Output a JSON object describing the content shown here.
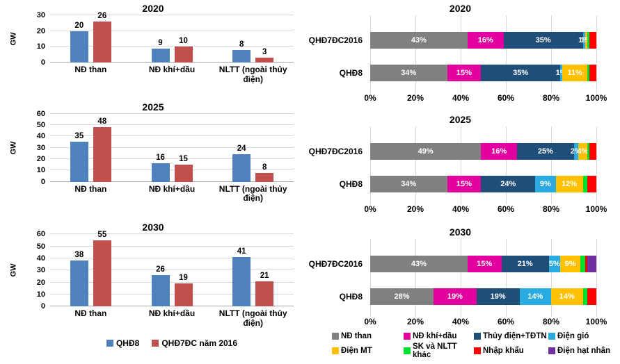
{
  "colors": {
    "qhd8_blue": "#4F81BD",
    "qhd7dc_red": "#C0504D",
    "nd_than_gray": "#808080",
    "nd_khi_dau_magenta": "#E2009E",
    "thuy_dien_navy": "#1F4E79",
    "dien_gio_cyan": "#29ABE2",
    "dien_mt_yellow": "#FFC000",
    "sk_nltt_green": "#00E02C",
    "nhap_khau_red": "#FF0000",
    "dien_hat_nhan_purple": "#7030A0",
    "gridline": "#D9D9D9",
    "axis_line": "#A6A6A6",
    "bar_label_white": "#FFFFFF",
    "text_black": "#000000"
  },
  "left_panel": {
    "legend": [
      {
        "label": "QHĐ8",
        "color": "#4F81BD"
      },
      {
        "label": "QHĐ7ĐC năm 2016",
        "color": "#C0504D"
      }
    ]
  },
  "right_panel": {
    "legend": [
      {
        "label": "NĐ than",
        "color": "#808080"
      },
      {
        "label": "NĐ khí+dầu",
        "color": "#E2009E"
      },
      {
        "label": "Thủy điện+TĐTN",
        "color": "#1F4E79"
      },
      {
        "label": "Điện gió",
        "color": "#29ABE2"
      },
      {
        "label": "Điện MT",
        "color": "#FFC000"
      },
      {
        "label": "SK và NLTT khác",
        "color": "#00E02C"
      },
      {
        "label": "Nhập khẩu",
        "color": "#FF0000"
      },
      {
        "label": "Điện hạt nhân",
        "color": "#7030A0"
      }
    ]
  },
  "chart_data": [
    {
      "type": "bar",
      "title": "2020",
      "ylabel": "GW",
      "ylim": [
        0,
        30
      ],
      "yticks": [
        0,
        10,
        20,
        30
      ],
      "grid": true,
      "categories": [
        "NĐ than",
        "NĐ khí+dầu",
        "NLTT (ngoài thủy điện)"
      ],
      "series": [
        {
          "name": "QHĐ8",
          "color": "#4F81BD",
          "values": [
            20,
            9,
            8
          ]
        },
        {
          "name": "QHĐ7ĐC năm 2016",
          "color": "#C0504D",
          "values": [
            26,
            10,
            3
          ]
        }
      ]
    },
    {
      "type": "bar",
      "title": "2025",
      "ylabel": "GW",
      "ylim": [
        0,
        60
      ],
      "yticks": [
        0,
        10,
        20,
        30,
        40,
        50,
        60
      ],
      "grid": true,
      "categories": [
        "NĐ than",
        "NĐ khí+dầu",
        "NLTT (ngoài thủy điện)"
      ],
      "series": [
        {
          "name": "QHĐ8",
          "color": "#4F81BD",
          "values": [
            35,
            16,
            24
          ]
        },
        {
          "name": "QHĐ7ĐC năm 2016",
          "color": "#C0504D",
          "values": [
            48,
            15,
            8
          ]
        }
      ]
    },
    {
      "type": "bar",
      "title": "2030",
      "ylabel": "GW",
      "ylim": [
        0,
        60
      ],
      "yticks": [
        0,
        10,
        20,
        30,
        40,
        50,
        60
      ],
      "grid": true,
      "categories": [
        "NĐ than",
        "NĐ khí+dầu",
        "NLTT (ngoài thủy điện)"
      ],
      "series": [
        {
          "name": "QHĐ8",
          "color": "#4F81BD",
          "values": [
            38,
            26,
            41
          ]
        },
        {
          "name": "QHĐ7ĐC năm 2016",
          "color": "#C0504D",
          "values": [
            55,
            19,
            21
          ]
        }
      ]
    },
    {
      "type": "stacked-bar-horizontal",
      "title": "2020",
      "xlim": [
        0,
        100
      ],
      "xticks": [
        "0%",
        "20%",
        "40%",
        "60%",
        "80%",
        "100%"
      ],
      "grid": true,
      "categories": [
        "QHĐ7ĐC2016",
        "QHĐ8"
      ],
      "series": [
        {
          "name": "NĐ than",
          "color": "#808080",
          "data_labels": true,
          "values": [
            43,
            34
          ]
        },
        {
          "name": "NĐ khí+dầu",
          "color": "#E2009E",
          "data_labels": true,
          "values": [
            16,
            15
          ]
        },
        {
          "name": "Thủy điện+TĐTN",
          "color": "#1F4E79",
          "data_labels": true,
          "values": [
            35,
            35
          ]
        },
        {
          "name": "Điện gió",
          "color": "#29ABE2",
          "data_labels": true,
          "values": [
            1,
            1
          ]
        },
        {
          "name": "Điện MT",
          "color": "#FFC000",
          "data_labels": true,
          "values": [
            1,
            11
          ]
        },
        {
          "name": "SK và NLTT khác",
          "color": "#00E02C",
          "data_labels": false,
          "values": [
            1,
            1
          ]
        },
        {
          "name": "Nhập khẩu",
          "color": "#FF0000",
          "data_labels": false,
          "values": [
            3,
            3
          ]
        },
        {
          "name": "Điện hạt nhân",
          "color": "#7030A0",
          "data_labels": false,
          "values": [
            0,
            0
          ]
        }
      ]
    },
    {
      "type": "stacked-bar-horizontal",
      "title": "2025",
      "xlim": [
        0,
        100
      ],
      "xticks": [
        "0%",
        "20%",
        "40%",
        "60%",
        "80%",
        "100%"
      ],
      "grid": true,
      "categories": [
        "QHĐ7ĐC2016",
        "QHĐ8"
      ],
      "series": [
        {
          "name": "NĐ than",
          "color": "#808080",
          "data_labels": true,
          "values": [
            49,
            34
          ]
        },
        {
          "name": "NĐ khí+dầu",
          "color": "#E2009E",
          "data_labels": true,
          "values": [
            16,
            15
          ]
        },
        {
          "name": "Thủy điện+TĐTN",
          "color": "#1F4E79",
          "data_labels": true,
          "values": [
            25,
            24
          ]
        },
        {
          "name": "Điện gió",
          "color": "#29ABE2",
          "data_labels": true,
          "values": [
            2,
            9
          ]
        },
        {
          "name": "Điện MT",
          "color": "#FFC000",
          "data_labels": true,
          "values": [
            4,
            12
          ]
        },
        {
          "name": "SK và NLTT khác",
          "color": "#00E02C",
          "data_labels": false,
          "values": [
            1,
            2
          ]
        },
        {
          "name": "Nhập khẩu",
          "color": "#FF0000",
          "data_labels": false,
          "values": [
            3,
            4
          ]
        },
        {
          "name": "Điện hạt nhân",
          "color": "#7030A0",
          "data_labels": false,
          "values": [
            0,
            0
          ]
        }
      ]
    },
    {
      "type": "stacked-bar-horizontal",
      "title": "2030",
      "xlim": [
        0,
        100
      ],
      "xticks": [
        "0%",
        "20%",
        "40%",
        "60%",
        "80%",
        "100%"
      ],
      "grid": true,
      "categories": [
        "QHĐ7ĐC2016",
        "QHĐ8"
      ],
      "series": [
        {
          "name": "NĐ than",
          "color": "#808080",
          "data_labels": true,
          "values": [
            43,
            28
          ]
        },
        {
          "name": "NĐ khí+dầu",
          "color": "#E2009E",
          "data_labels": true,
          "values": [
            15,
            19
          ]
        },
        {
          "name": "Thủy điện+TĐTN",
          "color": "#1F4E79",
          "data_labels": true,
          "values": [
            21,
            19
          ]
        },
        {
          "name": "Điện gió",
          "color": "#29ABE2",
          "data_labels": true,
          "values": [
            5,
            14
          ]
        },
        {
          "name": "Điện MT",
          "color": "#FFC000",
          "data_labels": true,
          "values": [
            9,
            14
          ]
        },
        {
          "name": "SK và NLTT khác",
          "color": "#00E02C",
          "data_labels": false,
          "values": [
            2,
            2
          ]
        },
        {
          "name": "Nhập khẩu",
          "color": "#FF0000",
          "data_labels": false,
          "values": [
            1,
            4
          ]
        },
        {
          "name": "Điện hạt nhân",
          "color": "#7030A0",
          "data_labels": false,
          "values": [
            4,
            0
          ]
        }
      ]
    }
  ]
}
